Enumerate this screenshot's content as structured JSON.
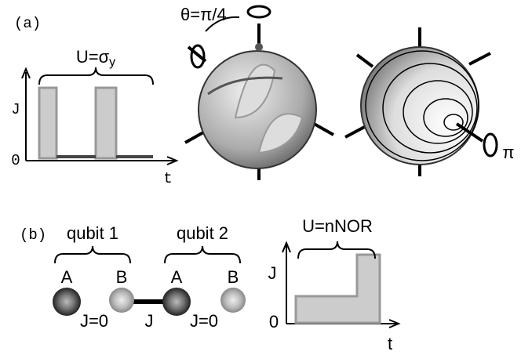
{
  "panel_a": {
    "label": "(a)",
    "angle": "θ=π/4",
    "rotation": "π",
    "plot": {
      "title": "U=σ",
      "title_sub": "y",
      "y_label": "J",
      "y_zero": "0",
      "x_label": "t"
    }
  },
  "panel_b": {
    "label": "(b)",
    "qubits": [
      {
        "name": "qubit 1",
        "sites": [
          "A",
          "B"
        ],
        "coupling": "J=0"
      },
      {
        "name": "qubit 2",
        "sites": [
          "A",
          "B"
        ],
        "coupling": "J=0"
      }
    ],
    "inter_coupling": "J",
    "plot": {
      "title": "U=nNOR",
      "y_label": "J",
      "y_zero": "0",
      "x_label": "t"
    }
  }
}
